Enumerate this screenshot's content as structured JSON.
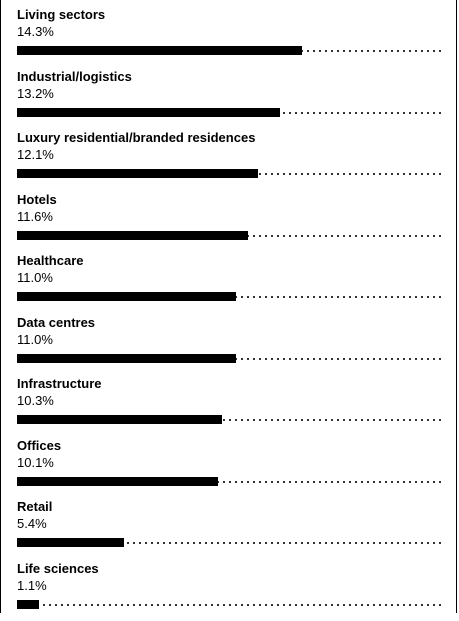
{
  "chart_data": {
    "type": "bar",
    "orientation": "horizontal",
    "title": "",
    "xlabel": "",
    "ylabel": "",
    "xlim": [
      0,
      21.5
    ],
    "grid": false,
    "legend": "none",
    "bar_color": "#000000",
    "categories": [
      "Living sectors",
      "Industrial/logistics",
      "Luxury residential/branded residences",
      "Hotels",
      "Healthcare",
      "Data centres",
      "Infrastructure",
      "Offices",
      "Retail",
      "Life sciences"
    ],
    "values": [
      14.3,
      13.2,
      12.1,
      11.6,
      11.0,
      11.0,
      10.3,
      10.1,
      5.4,
      1.1
    ],
    "value_labels": [
      "14.3%",
      "13.2%",
      "12.1%",
      "11.6%",
      "11.0%",
      "11.0%",
      "10.3%",
      "10.1%",
      "5.4%",
      "1.1%"
    ]
  }
}
